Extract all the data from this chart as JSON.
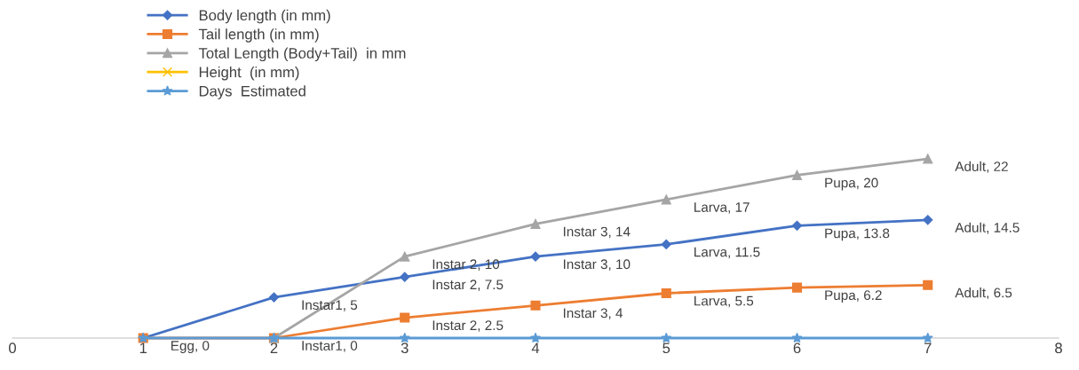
{
  "chart_data": {
    "type": "line",
    "x": [
      1,
      2,
      3,
      4,
      5,
      6,
      7
    ],
    "xlim": [
      0,
      8
    ],
    "xticks": [
      0,
      1,
      2,
      3,
      4,
      5,
      6,
      7,
      8
    ],
    "tick_labels": "x",
    "grid": false,
    "legend": "top left",
    "series": [
      {
        "name": "Body length (in mm)",
        "color": "#4472c4",
        "marker": "diamond",
        "values": [
          0,
          5,
          7.5,
          10,
          11.5,
          13.8,
          14.5
        ],
        "value_labels": [
          "Egg, 0",
          "Instar1, 5",
          "Instar 2, 7.5",
          "Instar 3, 10",
          "Larva, 11.5",
          "Pupa, 13.8",
          "Adult, 14.5"
        ]
      },
      {
        "name": "Tail length (in mm)",
        "color": "#ed7d31",
        "marker": "square",
        "values": [
          0,
          0,
          2.5,
          4,
          5.5,
          6.2,
          6.5
        ],
        "value_labels": [
          null,
          "Instar1, 0",
          "Instar 2, 2.5",
          "Instar 3, 4",
          "Larva, 5.5",
          "Pupa, 6.2",
          "Adult, 6.5"
        ]
      },
      {
        "name": "Total Length (Body+Tail)  in mm",
        "color": "#a5a5a5",
        "marker": "triangle",
        "values": [
          null,
          0,
          10,
          14,
          17,
          20,
          22
        ],
        "value_labels": [
          null,
          null,
          "Instar 2, 10",
          "Instar 3, 14",
          "Larva, 17",
          "Pupa, 20",
          "Adult, 22"
        ]
      },
      {
        "name": "Height  (in mm)",
        "color": "#ffc000",
        "marker": "cross",
        "values": [
          null,
          null,
          null,
          null,
          null,
          null,
          null
        ]
      },
      {
        "name": "Days  Estimated",
        "color": "#5b9bd5",
        "marker": "star",
        "values": [
          0,
          0,
          0,
          0,
          0,
          0,
          0
        ]
      }
    ]
  }
}
